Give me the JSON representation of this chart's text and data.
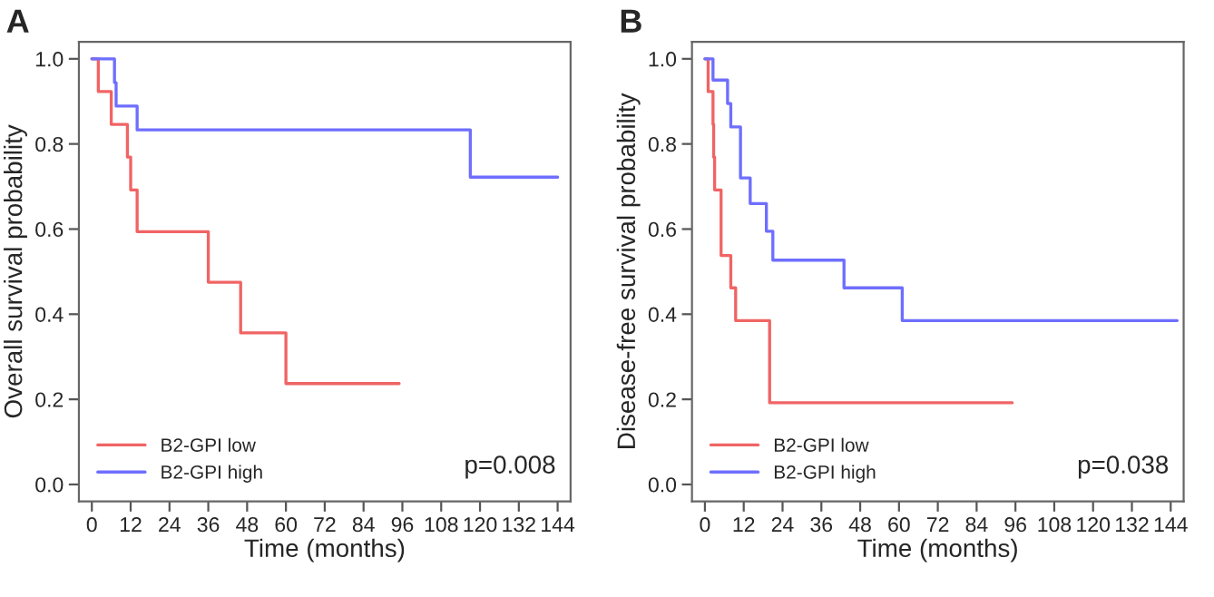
{
  "chart_data": [
    {
      "type": "step",
      "title": "A",
      "xlabel": "Time (months)",
      "ylabel": "Overall survival probability",
      "xlim": [
        -4,
        148
      ],
      "ylim": [
        -0.04,
        1.04
      ],
      "xticks": [
        0,
        12,
        24,
        36,
        48,
        60,
        72,
        84,
        96,
        108,
        120,
        132,
        144
      ],
      "yticks": [
        {
          "value": 0,
          "label": "0.0"
        },
        {
          "value": 0.2,
          "label": "0.2"
        },
        {
          "value": 0.4,
          "label": "0.4"
        },
        {
          "value": 0.6,
          "label": "0.6"
        },
        {
          "value": 0.8,
          "label": "0.8"
        },
        {
          "value": 1,
          "label": "1.0"
        }
      ],
      "grid": false,
      "legend": "bottom left",
      "annotations": [
        "p=0.008"
      ],
      "series": [
        {
          "name": "B2-GPI low",
          "color": "#f06464",
          "x": [
            0,
            2,
            6,
            11,
            12,
            14,
            36,
            46,
            60,
            95
          ],
          "values": [
            1.0,
            0.923,
            0.846,
            0.769,
            0.692,
            0.594,
            0.475,
            0.356,
            0.237,
            0.237
          ]
        },
        {
          "name": "B2-GPI high",
          "color": "#6e6eff",
          "x": [
            0,
            7,
            7.5,
            14,
            117,
            144
          ],
          "values": [
            1.0,
            0.944,
            0.889,
            0.833,
            0.722,
            0.722
          ]
        }
      ]
    },
    {
      "type": "step",
      "title": "B",
      "xlabel": "Time (months)",
      "ylabel": "Disease-free survival probability",
      "xlim": [
        -4,
        148
      ],
      "ylim": [
        -0.04,
        1.04
      ],
      "xticks": [
        0,
        12,
        24,
        36,
        48,
        60,
        72,
        84,
        96,
        108,
        120,
        132,
        144
      ],
      "yticks": [
        {
          "value": 0,
          "label": "0.0"
        },
        {
          "value": 0.2,
          "label": "0.2"
        },
        {
          "value": 0.4,
          "label": "0.4"
        },
        {
          "value": 0.6,
          "label": "0.6"
        },
        {
          "value": 0.8,
          "label": "0.8"
        },
        {
          "value": 1,
          "label": "1.0"
        }
      ],
      "grid": false,
      "legend": "bottom left",
      "annotations": [
        "p=0.038"
      ],
      "series": [
        {
          "name": "B2-GPI low",
          "color": "#f06464",
          "x": [
            0,
            1,
            2.5,
            2.7,
            3,
            5,
            8,
            9.5,
            20,
            95
          ],
          "values": [
            1.0,
            0.923,
            0.846,
            0.769,
            0.692,
            0.538,
            0.462,
            0.385,
            0.192,
            0.192
          ]
        },
        {
          "name": "B2-GPI high",
          "color": "#6e6eff",
          "x": [
            0,
            2.5,
            7,
            8,
            11,
            14,
            19,
            21,
            43,
            61,
            146
          ],
          "values": [
            1.0,
            0.95,
            0.895,
            0.84,
            0.72,
            0.66,
            0.595,
            0.527,
            0.462,
            0.385,
            0.385
          ]
        }
      ]
    }
  ]
}
